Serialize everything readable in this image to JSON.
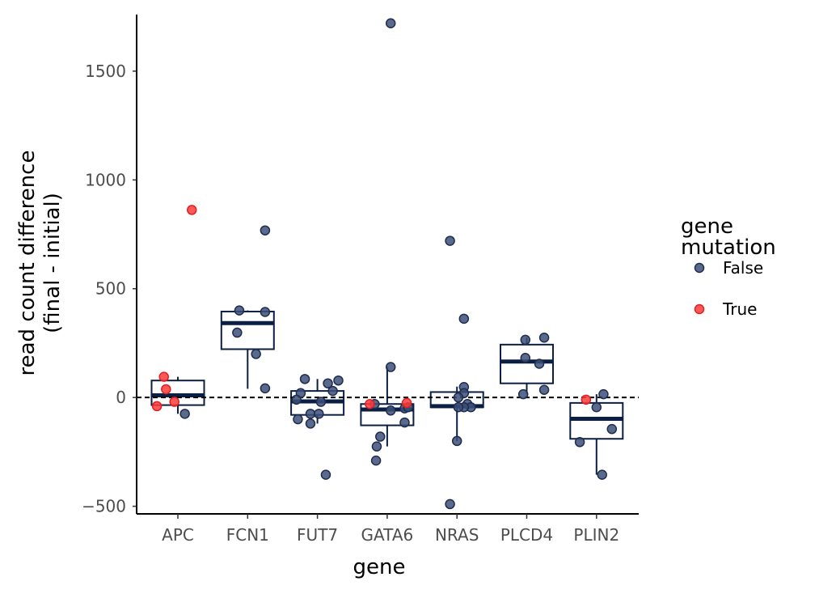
{
  "chart_data": {
    "type": "box",
    "xlabel": "gene",
    "ylabel": [
      "read count difference",
      "(final - initial)"
    ],
    "categories": [
      "APC",
      "FCN1",
      "FUT7",
      "GATA6",
      "NRAS",
      "PLCD4",
      "PLIN2"
    ],
    "ylim": [
      -535,
      1760
    ],
    "yticks": [
      -500,
      0,
      500,
      1000,
      1500
    ],
    "ytick_labels": [
      "−500",
      "0",
      "500",
      "1000",
      "1500"
    ],
    "reference_line": {
      "y": 0,
      "style": "dashed",
      "color": "#000000"
    },
    "grid": false,
    "box_color": "#0b1f45",
    "legend": {
      "title": [
        "gene",
        "mutation"
      ],
      "position": "right",
      "entries": [
        {
          "label": "False",
          "color": "#3d5079"
        },
        {
          "label": "True",
          "color": "#ff3b3b"
        }
      ]
    },
    "boxes": [
      {
        "category": "APC",
        "whisker_low": -75,
        "q1": -35,
        "median": 10,
        "q3": 78,
        "whisker_high": 95
      },
      {
        "category": "FCN1",
        "whisker_low": 40,
        "q1": 222,
        "median": 342,
        "q3": 395,
        "whisker_high": 400
      },
      {
        "category": "FUT7",
        "whisker_low": -120,
        "q1": -80,
        "median": -18,
        "q3": 30,
        "whisker_high": 85
      },
      {
        "category": "GATA6",
        "whisker_low": -225,
        "q1": -128,
        "median": -55,
        "q3": -30,
        "whisker_high": 140
      },
      {
        "category": "NRAS",
        "whisker_low": -200,
        "q1": -45,
        "median": -40,
        "q3": 25,
        "whisker_high": 50
      },
      {
        "category": "PLCD4",
        "whisker_low": 15,
        "q1": 65,
        "median": 165,
        "q3": 243,
        "whisker_high": 275
      },
      {
        "category": "PLIN2",
        "whisker_low": -355,
        "q1": -190,
        "median": -98,
        "q3": -25,
        "whisker_high": 15
      }
    ],
    "series": [
      {
        "name": "False",
        "color": "#3d5079",
        "points": [
          {
            "category": "APC",
            "jitter": 0.1,
            "y": -75
          },
          {
            "category": "FCN1",
            "jitter": -0.12,
            "y": 400
          },
          {
            "category": "FCN1",
            "jitter": 0.25,
            "y": 393
          },
          {
            "category": "FCN1",
            "jitter": -0.15,
            "y": 298
          },
          {
            "category": "FCN1",
            "jitter": 0.12,
            "y": 200
          },
          {
            "category": "FCN1",
            "jitter": 0.25,
            "y": 768
          },
          {
            "category": "FCN1",
            "jitter": 0.25,
            "y": 42
          },
          {
            "category": "FUT7",
            "jitter": 0.3,
            "y": 78
          },
          {
            "category": "FUT7",
            "jitter": -0.18,
            "y": 85
          },
          {
            "category": "FUT7",
            "jitter": 0.22,
            "y": 30
          },
          {
            "category": "FUT7",
            "jitter": -0.24,
            "y": 20
          },
          {
            "category": "FUT7",
            "jitter": 0.15,
            "y": 65
          },
          {
            "category": "FUT7",
            "jitter": -0.3,
            "y": -10
          },
          {
            "category": "FUT7",
            "jitter": 0.05,
            "y": -20
          },
          {
            "category": "FUT7",
            "jitter": -0.1,
            "y": -75
          },
          {
            "category": "FUT7",
            "jitter": 0.02,
            "y": -75
          },
          {
            "category": "FUT7",
            "jitter": -0.28,
            "y": -100
          },
          {
            "category": "FUT7",
            "jitter": -0.1,
            "y": -120
          },
          {
            "category": "FUT7",
            "jitter": 0.12,
            "y": -355
          },
          {
            "category": "GATA6",
            "jitter": 0.05,
            "y": 1720
          },
          {
            "category": "GATA6",
            "jitter": 0.05,
            "y": 140
          },
          {
            "category": "GATA6",
            "jitter": -0.18,
            "y": -30
          },
          {
            "category": "GATA6",
            "jitter": 0.25,
            "y": -50
          },
          {
            "category": "GATA6",
            "jitter": 0.3,
            "y": -45
          },
          {
            "category": "GATA6",
            "jitter": 0.05,
            "y": -60
          },
          {
            "category": "GATA6",
            "jitter": 0.25,
            "y": -115
          },
          {
            "category": "GATA6",
            "jitter": -0.1,
            "y": -180
          },
          {
            "category": "GATA6",
            "jitter": -0.15,
            "y": -225
          },
          {
            "category": "GATA6",
            "jitter": -0.16,
            "y": -290
          },
          {
            "category": "NRAS",
            "jitter": -0.1,
            "y": 720
          },
          {
            "category": "NRAS",
            "jitter": 0.1,
            "y": 362
          },
          {
            "category": "NRAS",
            "jitter": 0.1,
            "y": 48
          },
          {
            "category": "NRAS",
            "jitter": 0.1,
            "y": 20
          },
          {
            "category": "NRAS",
            "jitter": 0.02,
            "y": 0
          },
          {
            "category": "NRAS",
            "jitter": 0.15,
            "y": -30
          },
          {
            "category": "NRAS",
            "jitter": 0.2,
            "y": -45
          },
          {
            "category": "NRAS",
            "jitter": 0.1,
            "y": -45
          },
          {
            "category": "NRAS",
            "jitter": 0.02,
            "y": -45
          },
          {
            "category": "NRAS",
            "jitter": 0.0,
            "y": -200
          },
          {
            "category": "NRAS",
            "jitter": -0.1,
            "y": -490
          },
          {
            "category": "PLCD4",
            "jitter": -0.02,
            "y": 265
          },
          {
            "category": "PLCD4",
            "jitter": 0.25,
            "y": 275
          },
          {
            "category": "PLCD4",
            "jitter": -0.02,
            "y": 182
          },
          {
            "category": "PLCD4",
            "jitter": 0.18,
            "y": 155
          },
          {
            "category": "PLCD4",
            "jitter": 0.25,
            "y": 35
          },
          {
            "category": "PLCD4",
            "jitter": -0.05,
            "y": 15
          },
          {
            "category": "PLIN2",
            "jitter": 0.1,
            "y": 15
          },
          {
            "category": "PLIN2",
            "jitter": 0.0,
            "y": -45
          },
          {
            "category": "PLIN2",
            "jitter": 0.22,
            "y": -145
          },
          {
            "category": "PLIN2",
            "jitter": -0.24,
            "y": -205
          },
          {
            "category": "PLIN2",
            "jitter": 0.08,
            "y": -355
          }
        ]
      },
      {
        "name": "True",
        "color": "#ff3b3b",
        "points": [
          {
            "category": "APC",
            "jitter": 0.2,
            "y": 862
          },
          {
            "category": "APC",
            "jitter": -0.2,
            "y": 95
          },
          {
            "category": "APC",
            "jitter": -0.17,
            "y": 38
          },
          {
            "category": "APC",
            "jitter": -0.05,
            "y": -20
          },
          {
            "category": "APC",
            "jitter": -0.3,
            "y": -40
          },
          {
            "category": "GATA6",
            "jitter": -0.25,
            "y": -30
          },
          {
            "category": "GATA6",
            "jitter": 0.28,
            "y": -25
          },
          {
            "category": "PLIN2",
            "jitter": -0.15,
            "y": -10
          }
        ]
      }
    ]
  }
}
